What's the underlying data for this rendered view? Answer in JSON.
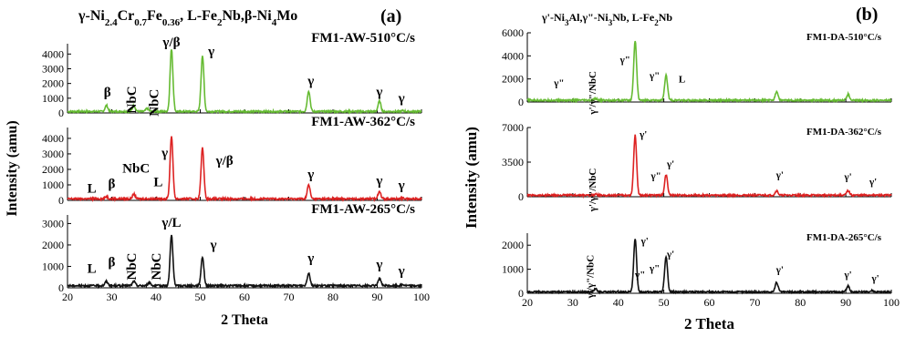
{
  "chart_data": [
    {
      "panel_label": "(a)",
      "type": "line",
      "xlabel": "2 Theta",
      "ylabel": "Intensity (amu)",
      "xlim": [
        20,
        100
      ],
      "x_ticks": [
        "20",
        "30",
        "40",
        "50",
        "60",
        "70",
        "80",
        "90",
        "100"
      ],
      "header_segments": [
        {
          "t": "γ-Ni",
          "s": ""
        },
        {
          "t": "2.4",
          "s": "sub"
        },
        {
          "t": "Cr",
          "s": ""
        },
        {
          "t": "0.7",
          "s": "sub"
        },
        {
          "t": "Fe",
          "s": ""
        },
        {
          "t": "0.36",
          "s": "sub"
        },
        {
          "t": ", L-Fe",
          "s": ""
        },
        {
          "t": "2",
          "s": "sub"
        },
        {
          "t": "Nb,β-Ni",
          "s": ""
        },
        {
          "t": "4",
          "s": "sub"
        },
        {
          "t": "Mo",
          "s": ""
        }
      ],
      "series": [
        {
          "name": "FM1-AW-510°C/s",
          "color": "#66bb33",
          "ylim": [
            0,
            4700
          ],
          "y_ticks": [
            "0",
            "1000",
            "2000",
            "3000",
            "4000"
          ],
          "baseline": 100,
          "peaks": [
            [
              28.8,
              500
            ],
            [
              35,
              500
            ],
            [
              38,
              300
            ],
            [
              43.5,
              4350
            ],
            [
              50.5,
              3900
            ],
            [
              74.5,
              1500
            ],
            [
              90.5,
              800
            ],
            [
              95.8,
              150
            ]
          ],
          "labels": [
            {
              "text": "β",
              "x": 29,
              "y": 1100,
              "rotate": false
            },
            {
              "text": "NbC",
              "x": 35.5,
              "y": 900,
              "rotate": true
            },
            {
              "text": "NbC",
              "x": 40.5,
              "y": 700,
              "rotate": true
            },
            {
              "text": "γ/β",
              "x": 43.5,
              "y": 4500,
              "rotate": false
            },
            {
              "text": "γ",
              "x": 52.5,
              "y": 3900,
              "rotate": false
            },
            {
              "text": "γ",
              "x": 75,
              "y": 1900,
              "rotate": false
            },
            {
              "text": "γ",
              "x": 90.5,
              "y": 1150,
              "rotate": false
            },
            {
              "text": "γ",
              "x": 95.5,
              "y": 700,
              "rotate": false
            }
          ]
        },
        {
          "name": "FM1-AW-362°C/s",
          "color": "#dd2222",
          "ylim": [
            0,
            4700
          ],
          "y_ticks": [
            "0",
            "1000",
            "2000",
            "3000",
            "4000"
          ],
          "baseline": 100,
          "peaks": [
            [
              28.8,
              250
            ],
            [
              35,
              400
            ],
            [
              43.5,
              4150
            ],
            [
              50.5,
              3400
            ],
            [
              74.5,
              1000
            ],
            [
              90.5,
              600
            ],
            [
              95.8,
              150
            ]
          ],
          "labels": [
            {
              "text": "L",
              "x": 25.5,
              "y": 500,
              "rotate": false
            },
            {
              "text": "β",
              "x": 30,
              "y": 800,
              "rotate": false
            },
            {
              "text": "NbC",
              "x": 35.5,
              "y": 1800,
              "rotate": false
            },
            {
              "text": "L",
              "x": 40.5,
              "y": 900,
              "rotate": false
            },
            {
              "text": "γ",
              "x": 42,
              "y": 2800,
              "rotate": false
            },
            {
              "text": "γ/β",
              "x": 55.5,
              "y": 2300,
              "rotate": false
            },
            {
              "text": "γ",
              "x": 75,
              "y": 1400,
              "rotate": false
            },
            {
              "text": "γ",
              "x": 90.5,
              "y": 1000,
              "rotate": false
            },
            {
              "text": "γ",
              "x": 95.5,
              "y": 700,
              "rotate": false
            }
          ]
        },
        {
          "name": "FM1-AW-265°C/s",
          "color": "#111111",
          "ylim": [
            0,
            3400
          ],
          "y_ticks": [
            "0",
            "1000",
            "2000",
            "3000"
          ],
          "baseline": 100,
          "peaks": [
            [
              28.8,
              300
            ],
            [
              35,
              300
            ],
            [
              38.5,
              250
            ],
            [
              43.5,
              2450
            ],
            [
              50.5,
              1450
            ],
            [
              74.5,
              700
            ],
            [
              90.5,
              450
            ],
            [
              95.8,
              150
            ]
          ],
          "labels": [
            {
              "text": "L",
              "x": 25.5,
              "y": 700,
              "rotate": false
            },
            {
              "text": "β",
              "x": 30,
              "y": 1000,
              "rotate": false
            },
            {
              "text": "NbC",
              "x": 35.5,
              "y": 1000,
              "rotate": true
            },
            {
              "text": "NbC",
              "x": 41,
              "y": 1000,
              "rotate": true
            },
            {
              "text": "γ/L",
              "x": 43.5,
              "y": 2850,
              "rotate": false
            },
            {
              "text": "γ",
              "x": 53,
              "y": 1800,
              "rotate": false
            },
            {
              "text": "γ",
              "x": 75,
              "y": 1200,
              "rotate": false
            },
            {
              "text": "γ",
              "x": 90.5,
              "y": 900,
              "rotate": false
            },
            {
              "text": "γ",
              "x": 95.5,
              "y": 600,
              "rotate": false
            }
          ]
        }
      ]
    },
    {
      "panel_label": "(b)",
      "type": "line",
      "xlabel": "2 Theta",
      "ylabel": "Intensity (amu)",
      "xlim": [
        20,
        100
      ],
      "x_ticks": [
        "20",
        "30",
        "40",
        "50",
        "60",
        "70",
        "80",
        "90",
        "100"
      ],
      "header_segments": [
        {
          "t": "γ'-Ni",
          "s": ""
        },
        {
          "t": "3",
          "s": "sub"
        },
        {
          "t": "Al,γ\"-Ni",
          "s": ""
        },
        {
          "t": "3",
          "s": "sub"
        },
        {
          "t": "Nb, L-Fe",
          "s": ""
        },
        {
          "t": "2",
          "s": "sub"
        },
        {
          "t": "Nb",
          "s": ""
        }
      ],
      "series": [
        {
          "name": "FM1-DA-510°C/s",
          "color": "#66bb33",
          "ylim": [
            0,
            6000
          ],
          "y_ticks": [
            "0",
            "2000",
            "4000",
            "6000"
          ],
          "baseline": 150,
          "peaks": [
            [
              35,
              300
            ],
            [
              43.7,
              5300
            ],
            [
              50.5,
              2300
            ],
            [
              74.8,
              900
            ],
            [
              90.5,
              650
            ]
          ],
          "labels": [
            {
              "text": "γ\"",
              "x": 27,
              "y": 1400,
              "rotate": false
            },
            {
              "text": "γ'/γ\"/NbC",
              "x": 35,
              "y": 800,
              "rotate": true
            },
            {
              "text": "γ\"",
              "x": 41.5,
              "y": 3400,
              "rotate": false
            },
            {
              "text": "γ\"",
              "x": 48,
              "y": 2000,
              "rotate": false
            },
            {
              "text": "L",
              "x": 54,
              "y": 1700,
              "rotate": false
            }
          ]
        },
        {
          "name": "FM1-DA-362°C/s",
          "color": "#dd2222",
          "ylim": [
            0,
            7000
          ],
          "y_ticks": [
            "0",
            "3500",
            "7000"
          ],
          "baseline": 150,
          "peaks": [
            [
              35,
              250
            ],
            [
              43.7,
              6200
            ],
            [
              50.5,
              2200
            ],
            [
              74.8,
              600
            ],
            [
              90.5,
              600
            ],
            [
              95.8,
              200
            ]
          ],
          "labels": [
            {
              "text": "γ'/γ\"/NbC",
              "x": 35,
              "y": 700,
              "rotate": true
            },
            {
              "text": "γ'",
              "x": 45.5,
              "y": 6000,
              "rotate": false
            },
            {
              "text": "γ\"",
              "x": 48.3,
              "y": 1800,
              "rotate": false
            },
            {
              "text": "γ'",
              "x": 51.5,
              "y": 3000,
              "rotate": false
            },
            {
              "text": "γ'",
              "x": 75.5,
              "y": 1900,
              "rotate": false
            },
            {
              "text": "γ'",
              "x": 90.5,
              "y": 1700,
              "rotate": false
            },
            {
              "text": "γ'",
              "x": 96,
              "y": 1200,
              "rotate": false
            }
          ]
        },
        {
          "name": "FM1-DA-265°C/s",
          "color": "#111111",
          "ylim": [
            0,
            2500
          ],
          "y_ticks": [
            "0",
            "1000",
            "2000"
          ],
          "baseline": 60,
          "peaks": [
            [
              35,
              180
            ],
            [
              43.7,
              2250
            ],
            [
              50.5,
              1500
            ],
            [
              74.8,
              450
            ],
            [
              90.5,
              300
            ],
            [
              95.8,
              120
            ]
          ],
          "labels": [
            {
              "text": "γ'/γ\"/NbC",
              "x": 34.5,
              "y": 700,
              "rotate": true
            },
            {
              "text": "γ\"",
              "x": 44.8,
              "y": 650,
              "rotate": false
            },
            {
              "text": "γ'",
              "x": 45.8,
              "y": 2050,
              "rotate": false
            },
            {
              "text": "γ\"",
              "x": 48,
              "y": 900,
              "rotate": false
            },
            {
              "text": "γ'",
              "x": 51.5,
              "y": 1500,
              "rotate": false
            },
            {
              "text": "γ'",
              "x": 75.5,
              "y": 850,
              "rotate": false
            },
            {
              "text": "γ'",
              "x": 90.5,
              "y": 650,
              "rotate": false
            },
            {
              "text": "γ'",
              "x": 96.5,
              "y": 500,
              "rotate": false
            }
          ]
        }
      ]
    }
  ]
}
